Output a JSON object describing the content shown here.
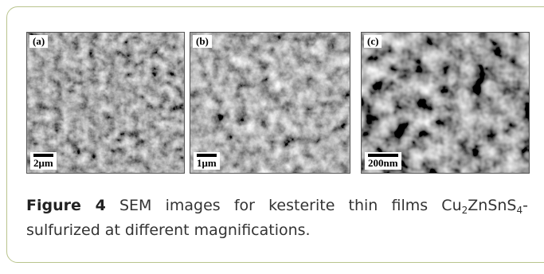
{
  "figure": {
    "panels": [
      {
        "label": "(a)",
        "scale_bar": "2μm"
      },
      {
        "label": "(b)",
        "scale_bar": "1μm"
      },
      {
        "label": "(c)",
        "scale_bar": "200nm"
      }
    ],
    "caption": {
      "label": "Figure 4",
      "parts": [
        "SEM images for kesterite thin films Cu",
        "2",
        "ZnSnS",
        "4",
        "-sulfurized at different magnifications."
      ]
    }
  }
}
